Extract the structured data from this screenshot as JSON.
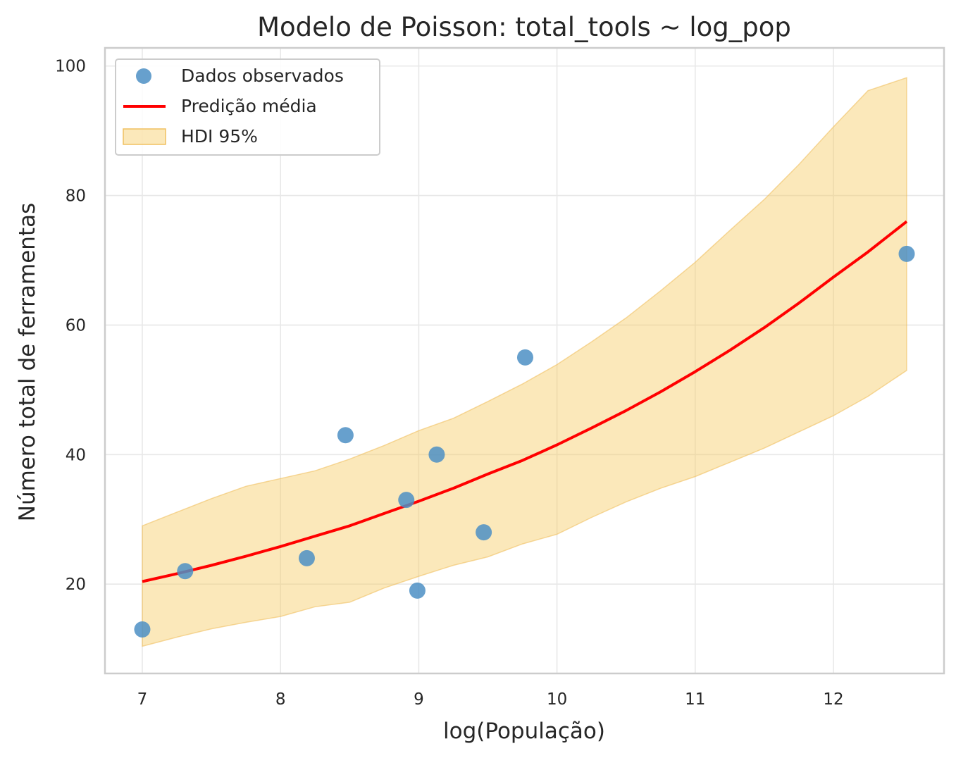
{
  "chart_data": {
    "type": "scatter",
    "title": "Modelo de Poisson: total_tools ~ log_pop",
    "xlabel": "log(População)",
    "ylabel": "Número total de ferramentas",
    "xlim": [
      6.73,
      12.8
    ],
    "ylim": [
      6.2,
      102.8
    ],
    "xticks": [
      7,
      8,
      9,
      10,
      11,
      12
    ],
    "yticks": [
      20,
      40,
      60,
      80,
      100
    ],
    "grid": true,
    "legend_position": "top-left",
    "colors": {
      "observed": "#4c8fc4",
      "prediction": "#ff0000",
      "hdi_fill": "#f5c75a",
      "hdi_edge": "#f0c060"
    },
    "legend": [
      {
        "label": "Dados observados",
        "kind": "marker"
      },
      {
        "label": "Predição média",
        "kind": "line"
      },
      {
        "label": "HDI 95%",
        "kind": "patch"
      }
    ],
    "series": [
      {
        "name": "Dados observados",
        "type": "scatter",
        "x": [
          7.0,
          7.31,
          8.19,
          8.47,
          8.91,
          8.99,
          9.13,
          9.47,
          9.77,
          12.53
        ],
        "y": [
          13,
          22,
          24,
          43,
          33,
          19,
          40,
          28,
          55,
          71
        ]
      },
      {
        "name": "Predição média",
        "type": "line",
        "x": [
          7.0,
          7.25,
          7.5,
          7.75,
          8.0,
          8.25,
          8.5,
          8.75,
          9.0,
          9.25,
          9.5,
          9.75,
          10.0,
          10.25,
          10.5,
          10.75,
          11.0,
          11.25,
          11.5,
          11.75,
          12.0,
          12.25,
          12.53
        ],
        "y": [
          20.4,
          21.6,
          22.9,
          24.3,
          25.8,
          27.4,
          29.0,
          30.9,
          32.8,
          34.8,
          37.0,
          39.1,
          41.5,
          44.1,
          46.8,
          49.7,
          52.8,
          56.1,
          59.6,
          63.4,
          67.4,
          71.3,
          76.0
        ]
      },
      {
        "name": "HDI 95%",
        "type": "band",
        "x": [
          7.0,
          7.25,
          7.5,
          7.75,
          8.0,
          8.25,
          8.5,
          8.75,
          9.0,
          9.25,
          9.5,
          9.75,
          10.0,
          10.25,
          10.5,
          10.75,
          11.0,
          11.25,
          11.5,
          11.75,
          12.0,
          12.25,
          12.53
        ],
        "lower": [
          10.4,
          11.8,
          13.1,
          14.1,
          15.0,
          16.5,
          17.2,
          19.4,
          21.2,
          22.9,
          24.2,
          26.2,
          27.7,
          30.3,
          32.7,
          34.8,
          36.6,
          38.8,
          41.0,
          43.5,
          46.0,
          49.0,
          53.0
        ],
        "upper": [
          29.0,
          31.1,
          33.2,
          35.1,
          36.3,
          37.5,
          39.3,
          41.4,
          43.7,
          45.6,
          48.2,
          50.9,
          53.9,
          57.4,
          61.1,
          65.3,
          69.7,
          74.6,
          79.4,
          84.8,
          90.6,
          96.2,
          98.2
        ]
      }
    ]
  }
}
